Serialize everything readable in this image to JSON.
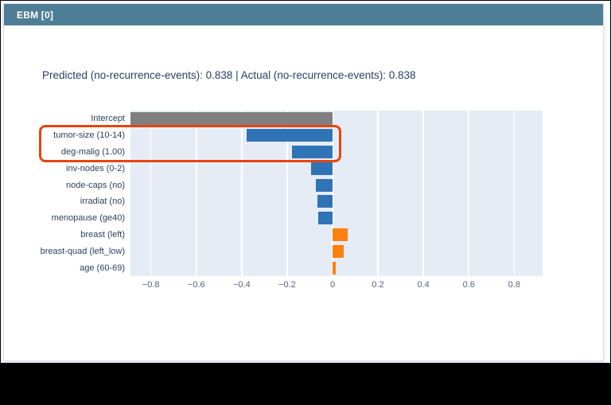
{
  "panel": {
    "header": "EBM [0]"
  },
  "chart_data": {
    "type": "bar",
    "orientation": "horizontal",
    "title": "Predicted (no-recurrence-events): 0.838 | Actual (no-recurrence-events): 0.838",
    "xlabel": "",
    "ylabel": "",
    "xlim": [
      -0.89,
      0.925
    ],
    "xticks": [
      -0.8,
      -0.6,
      -0.4,
      -0.2,
      0,
      0.2,
      0.4,
      0.6,
      0.8
    ],
    "xtick_labels": [
      "−0.8",
      "−0.6",
      "−0.4",
      "−0.2",
      "0",
      "0.2",
      "0.4",
      "0.6",
      "0.8"
    ],
    "grid": true,
    "legend": "none",
    "rows": [
      {
        "label": "Intercept",
        "value": -0.89,
        "kind": "intercept",
        "clipped_at_plot_edge": true
      },
      {
        "label": "tumor-size (10-14)",
        "value": -0.38,
        "kind": "negative"
      },
      {
        "label": "deg-malig (1.00)",
        "value": -0.18,
        "kind": "negative"
      },
      {
        "label": "inv-nodes (0-2)",
        "value": -0.095,
        "kind": "negative"
      },
      {
        "label": "node-caps (no)",
        "value": -0.072,
        "kind": "negative"
      },
      {
        "label": "irradiat (no)",
        "value": -0.067,
        "kind": "negative"
      },
      {
        "label": "menopause (ge40)",
        "value": -0.064,
        "kind": "negative"
      },
      {
        "label": "breast (left)",
        "value": 0.065,
        "kind": "positive"
      },
      {
        "label": "breast-quad (left_low)",
        "value": 0.05,
        "kind": "positive"
      },
      {
        "label": "age (60-69)",
        "value": 0.015,
        "kind": "positive"
      }
    ],
    "highlight_rows": [
      "tumor-size (10-14)",
      "deg-malig (1.00)"
    ],
    "colors": {
      "negative": "#3074b5",
      "positive": "#fb800e",
      "intercept": "#808080",
      "plot_background": "#e5ecf6",
      "gridline": "#ffffff",
      "highlight_border": "#e6440f",
      "header_background": "#4e7e95",
      "title_text": "#2a3f5f"
    }
  }
}
